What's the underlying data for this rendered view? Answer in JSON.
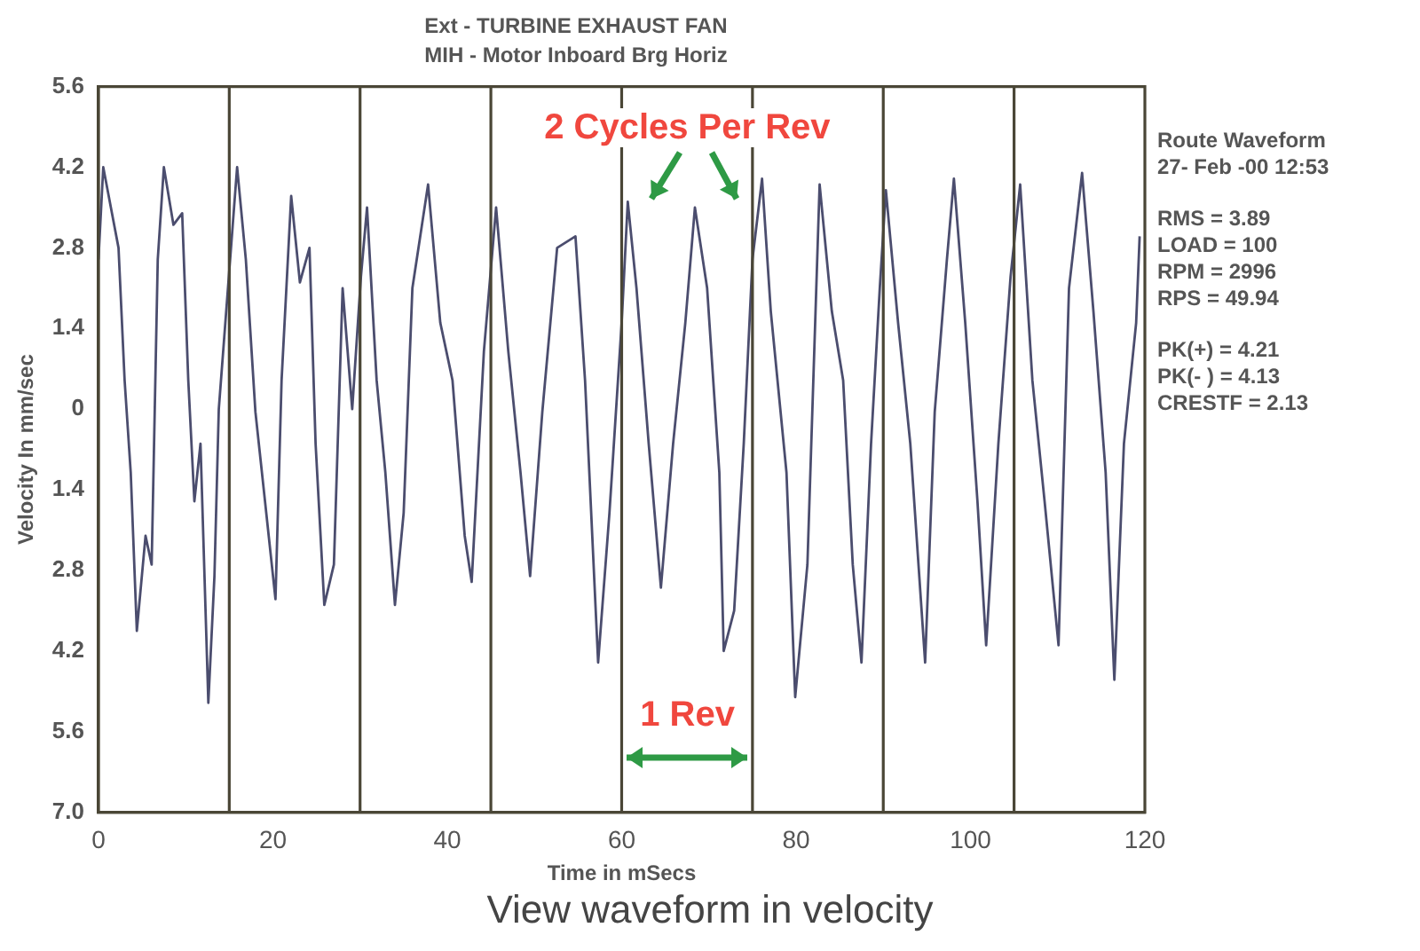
{
  "chart_data": {
    "type": "line",
    "title": "Ext - TURBINE EXHAUST FAN",
    "subtitle": "MIH - Motor Inboard Brg Horiz",
    "xlabel": "Time in mSecs",
    "ylabel": "Velocity In mm/sec",
    "x": [
      0,
      0.55,
      2.3,
      3.0,
      3.7,
      4.4,
      5.4,
      6.1,
      6.8,
      7.5,
      8.6,
      9.6,
      10.3,
      11.0,
      11.7,
      12.6,
      13.3,
      13.8,
      14.9,
      15.9,
      16.9,
      18.0,
      19.1,
      20.3,
      21.0,
      22.1,
      23.1,
      24.2,
      24.9,
      25.9,
      27.0,
      28.0,
      29.1,
      30.1,
      30.8,
      31.9,
      32.9,
      34.0,
      35.0,
      36.0,
      37.8,
      39.2,
      40.6,
      42.0,
      42.8,
      44.2,
      45.6,
      47.0,
      48.4,
      49.5,
      50.9,
      52.6,
      54.7,
      55.8,
      57.3,
      58.6,
      60.0,
      60.7,
      61.7,
      63.1,
      64.5,
      65.9,
      67.3,
      68.4,
      69.8,
      71.2,
      71.7,
      72.9,
      74.0,
      75.0,
      76.1,
      77.1,
      78.9,
      79.9,
      81.3,
      82.7,
      84.1,
      85.4,
      86.5,
      87.5,
      88.6,
      89.6,
      90.3,
      91.7,
      93.1,
      94.8,
      95.9,
      97.3,
      98.1,
      99.4,
      100.8,
      101.8,
      103.2,
      104.6,
      105.7,
      107.1,
      108.5,
      110.1,
      111.3,
      112.8,
      114.1,
      115.5,
      116.5,
      117.6,
      119.0,
      119.4
    ],
    "series": [
      {
        "color": "#4b4d6e",
        "values": [
          2.6,
          4.2,
          2.8,
          0.5,
          -1.1,
          -3.85,
          -2.2,
          -2.7,
          2.6,
          4.2,
          3.2,
          3.4,
          0.5,
          -1.6,
          -0.6,
          -5.1,
          -2.9,
          0,
          2.2,
          4.2,
          2.6,
          -0.05,
          -1.6,
          -3.3,
          0.5,
          3.7,
          2.2,
          2.8,
          -0.6,
          -3.4,
          -2.7,
          2.1,
          0,
          2.3,
          3.5,
          0.5,
          -1.1,
          -3.4,
          -1.8,
          2.1,
          3.9,
          1.5,
          0.5,
          -2.2,
          -3.0,
          1.0,
          3.5,
          1.0,
          -1.1,
          -2.9,
          -0.05,
          2.8,
          3.0,
          0.5,
          -4.4,
          -1.8,
          1.5,
          3.6,
          2.1,
          -0.6,
          -3.1,
          -0.6,
          1.5,
          3.5,
          2.1,
          -1.1,
          -4.2,
          -3.5,
          -0.6,
          2.6,
          4.0,
          1.7,
          -1.1,
          -5.0,
          -2.7,
          3.9,
          1.7,
          0.5,
          -2.7,
          -4.4,
          -0.6,
          2.1,
          3.8,
          1.5,
          -0.6,
          -4.4,
          -0.05,
          2.6,
          4.0,
          1.5,
          -1.6,
          -4.1,
          -0.6,
          2.3,
          3.9,
          0.5,
          -1.6,
          -4.1,
          2.1,
          4.1,
          1.7,
          -1.1,
          -4.7,
          -0.6,
          1.5,
          3.0
        ]
      }
    ],
    "xlim": [
      0,
      120
    ],
    "xticks": [
      0,
      20,
      40,
      60,
      80,
      100,
      120
    ],
    "ylim": [
      -7.0,
      5.6
    ],
    "yticks": [
      {
        "value": -7.0,
        "label": "7.0"
      },
      {
        "value": -5.6,
        "label": "5.6"
      },
      {
        "value": -4.2,
        "label": "4.2"
      },
      {
        "value": -2.8,
        "label": "2.8"
      },
      {
        "value": -1.4,
        "label": "1.4"
      },
      0,
      1.4,
      2.8,
      4.2,
      5.6
    ],
    "ref_lines": [
      {
        "axis": "x",
        "value": 15,
        "color": "#4a4636"
      },
      {
        "axis": "x",
        "value": 30,
        "color": "#4a4636"
      },
      {
        "axis": "x",
        "value": 45,
        "color": "#4a4636"
      },
      {
        "axis": "x",
        "value": 60,
        "color": "#4a4636"
      },
      {
        "axis": "x",
        "value": 75,
        "color": "#4a4636"
      },
      {
        "axis": "x",
        "value": 90,
        "color": "#4a4636"
      },
      {
        "axis": "x",
        "value": 105,
        "color": "#4a4636"
      }
    ],
    "grid": false,
    "legend": false,
    "marker": "none",
    "line_style": "solid",
    "annotations": [
      "2 Cycles Per Rev",
      "1 Rev",
      "Route Waveform",
      "27- Feb -00 12:53",
      "RMS =  3.89",
      "LOAD = 100",
      "RPM = 2996",
      "RPS = 49.94",
      "PK(+) = 4.21",
      "PK(- ) = 4.13",
      "CRESTF = 2.13",
      "View waveform in velocity"
    ]
  }
}
